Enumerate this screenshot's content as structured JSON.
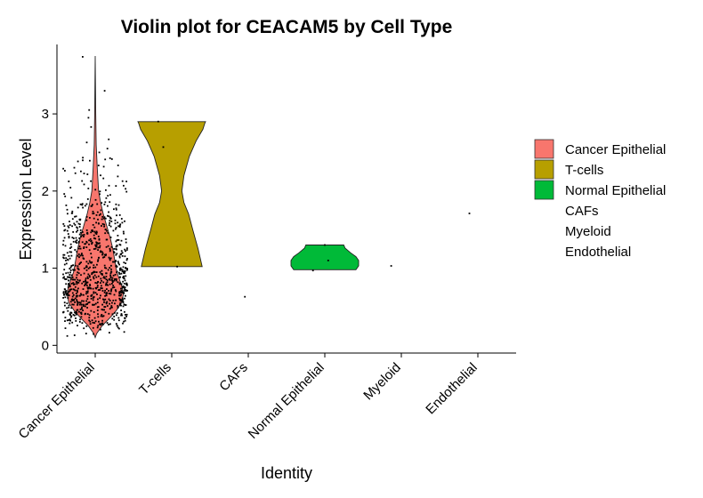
{
  "chart_data": {
    "type": "violin",
    "title": "Violin plot for CEACAM5 by Cell Type",
    "xlabel": "Identity",
    "ylabel": "Expression Level",
    "ylim": [
      -0.1,
      3.9
    ],
    "yticks": [
      0,
      1,
      2,
      3
    ],
    "categories": [
      "Cancer Epithelial",
      "T-cells",
      "CAFs",
      "Normal Epithelial",
      "Myeloid",
      "Endothelial"
    ],
    "legend": {
      "position": "right",
      "entries": [
        {
          "label": "Cancer Epithelial",
          "color": "#F8766D",
          "has_key": true
        },
        {
          "label": "T-cells",
          "color": "#B79F00",
          "has_key": true
        },
        {
          "label": "Normal Epithelial",
          "color": "#00BA38",
          "has_key": true
        },
        {
          "label": "CAFs",
          "color": "",
          "has_key": false
        },
        {
          "label": "Myeloid",
          "color": "",
          "has_key": false
        },
        {
          "label": "Endothelial",
          "color": "",
          "has_key": false
        }
      ]
    },
    "violins": [
      {
        "category": "Cancer Epithelial",
        "color": "#F8766D",
        "profile": [
          [
            0.1,
            0.0
          ],
          [
            0.15,
            0.04
          ],
          [
            0.25,
            0.2
          ],
          [
            0.35,
            0.42
          ],
          [
            0.45,
            0.62
          ],
          [
            0.55,
            0.78
          ],
          [
            0.65,
            0.83
          ],
          [
            0.75,
            0.8
          ],
          [
            0.85,
            0.72
          ],
          [
            0.95,
            0.64
          ],
          [
            1.1,
            0.58
          ],
          [
            1.25,
            0.52
          ],
          [
            1.4,
            0.44
          ],
          [
            1.55,
            0.34
          ],
          [
            1.7,
            0.24
          ],
          [
            1.85,
            0.16
          ],
          [
            2.0,
            0.1
          ],
          [
            2.3,
            0.06
          ],
          [
            2.6,
            0.03
          ],
          [
            3.0,
            0.015
          ],
          [
            3.4,
            0.008
          ],
          [
            3.75,
            0.0
          ]
        ]
      },
      {
        "category": "T-cells",
        "color": "#B79F00",
        "profile": [
          [
            1.02,
            0.9
          ],
          [
            1.25,
            0.78
          ],
          [
            1.5,
            0.62
          ],
          [
            1.7,
            0.5
          ],
          [
            1.85,
            0.36
          ],
          [
            2.0,
            0.3
          ],
          [
            2.2,
            0.36
          ],
          [
            2.45,
            0.52
          ],
          [
            2.65,
            0.72
          ],
          [
            2.8,
            0.92
          ],
          [
            2.88,
            0.98
          ],
          [
            2.9,
            1.0
          ]
        ]
      },
      {
        "category": "Normal Epithelial",
        "color": "#00BA38",
        "profile": [
          [
            0.98,
            0.92
          ],
          [
            1.03,
            1.0
          ],
          [
            1.1,
            1.0
          ],
          [
            1.15,
            0.92
          ],
          [
            1.2,
            0.76
          ],
          [
            1.26,
            0.6
          ],
          [
            1.3,
            0.56
          ]
        ]
      }
    ],
    "points": [
      {
        "category": "T-cells",
        "jitter": -0.4,
        "y": 2.9
      },
      {
        "category": "T-cells",
        "jitter": -0.25,
        "y": 2.57
      },
      {
        "category": "T-cells",
        "jitter": 0.16,
        "y": 1.02
      },
      {
        "category": "CAFs",
        "jitter": -0.1,
        "y": 0.63
      },
      {
        "category": "Normal Epithelial",
        "jitter": 0.0,
        "y": 1.3
      },
      {
        "category": "Normal Epithelial",
        "jitter": -0.35,
        "y": 0.97
      },
      {
        "category": "Normal Epithelial",
        "jitter": 0.1,
        "y": 1.1
      },
      {
        "category": "Myeloid",
        "jitter": -0.3,
        "y": 1.03
      },
      {
        "category": "Endothelial",
        "jitter": -0.25,
        "y": 1.71
      },
      {
        "category": "Cancer Epithelial",
        "jitter": -0.37,
        "y": 3.74
      },
      {
        "category": "Cancer Epithelial",
        "jitter": 0.28,
        "y": 3.3
      },
      {
        "category": "Cancer Epithelial",
        "jitter": -0.18,
        "y": 3.05
      },
      {
        "category": "Cancer Epithelial",
        "jitter": -0.2,
        "y": 2.95
      },
      {
        "category": "Cancer Epithelial",
        "jitter": 0.4,
        "y": 2.67
      },
      {
        "category": "Cancer Epithelial",
        "jitter": -0.25,
        "y": 2.63
      },
      {
        "category": "Cancer Epithelial",
        "jitter": -0.12,
        "y": 2.83
      },
      {
        "category": "Cancer Epithelial",
        "jitter": 0.36,
        "y": 2.55
      },
      {
        "category": "Cancer Epithelial",
        "jitter": 0.12,
        "y": 2.5
      }
    ],
    "dense_points": {
      "category": "Cancer Epithelial",
      "count": 900,
      "range": [
        0.12,
        2.45
      ]
    }
  }
}
